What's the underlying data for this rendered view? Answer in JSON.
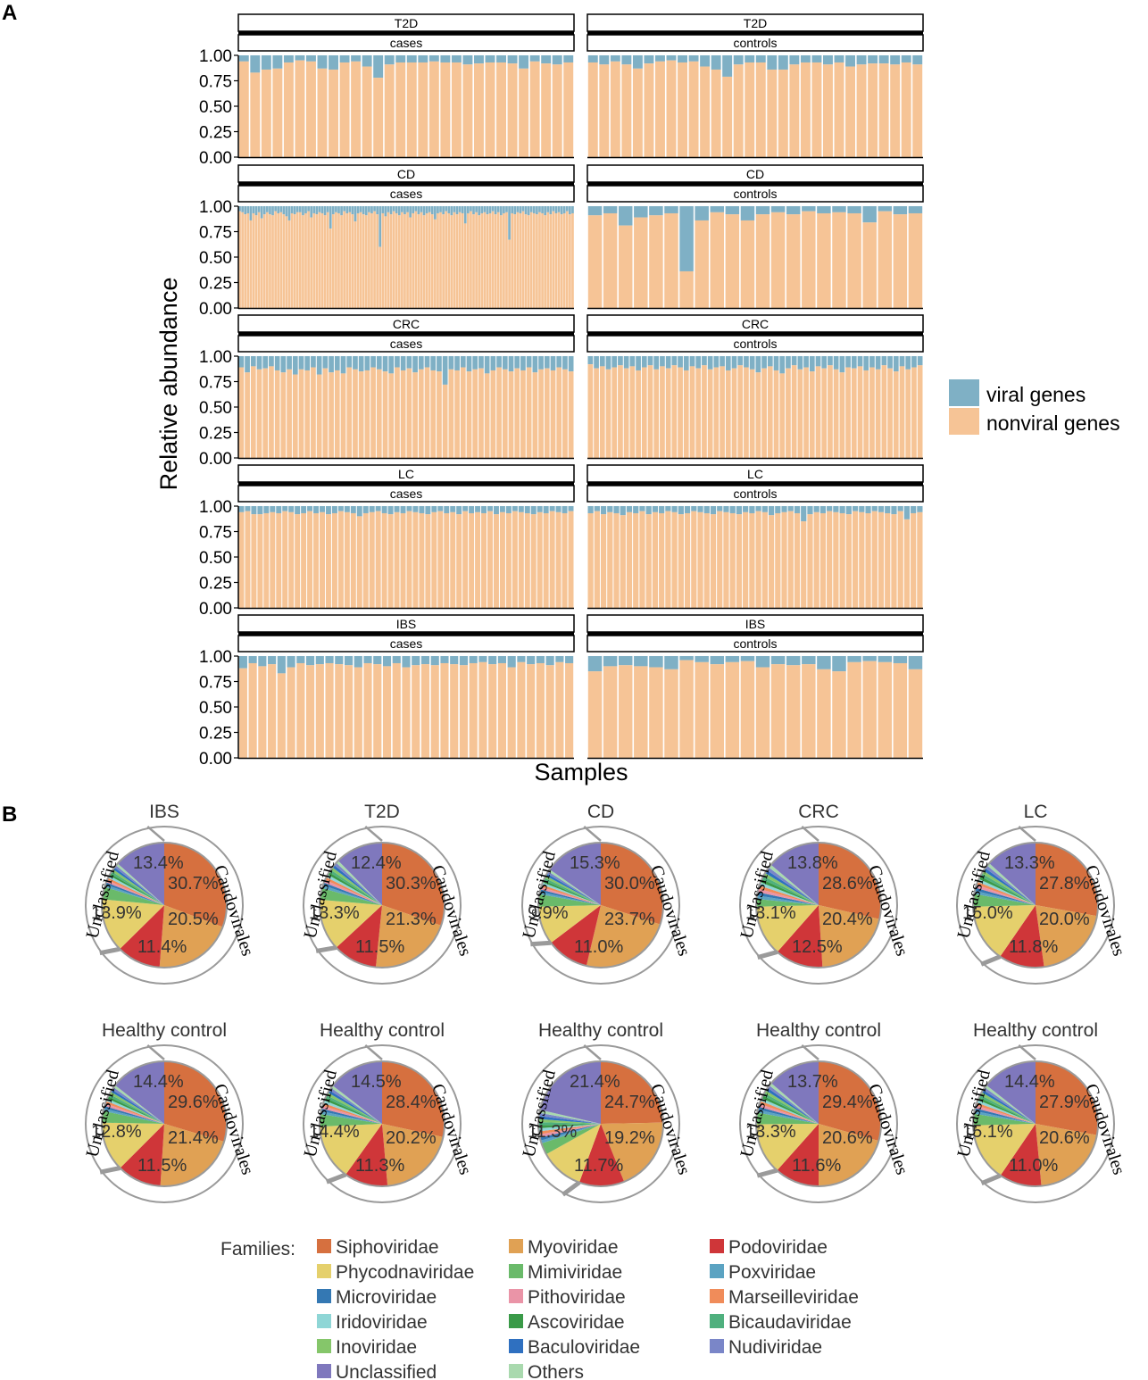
{
  "panel_labels": {
    "a": "A",
    "b": "B"
  },
  "colors": {
    "viral": "#7fb0c5",
    "nonviral": "#f6c496",
    "families": {
      "Siphoviridae": "#d6703f",
      "Myoviridae": "#e0a154",
      "Podoviridae": "#cf3639",
      "Phycodnaviridae": "#e5d06c",
      "Mimiviridae": "#6aba6a",
      "Poxviridae": "#5ba3c2",
      "Microviridae": "#3478b3",
      "Pithoviridae": "#ea94a7",
      "Marseilleviridae": "#f08c5a",
      "Iridoviridae": "#8fd6d6",
      "Ascoviridae": "#3a9a48",
      "Bicaudaviridae": "#4fb07e",
      "Inoviridae": "#85c66a",
      "Baculoviridae": "#2f70c0",
      "Nudiviridae": "#7a86c8",
      "Unclassified": "#7f78bd",
      "Others": "#a9d9ae"
    }
  },
  "chart_data": [
    {
      "type": "bar",
      "stacked": true,
      "panel": "A",
      "title": "",
      "xlabel": "Samples",
      "ylabel": "Relative abundance",
      "ylim": [
        0,
        1
      ],
      "yticks": [
        "0.00",
        "0.25",
        "0.50",
        "0.75",
        "1.00"
      ],
      "legend": {
        "position": "right",
        "entries": [
          "viral genes",
          "nonviral genes"
        ]
      },
      "facets": [
        {
          "disease": "T2D",
          "group": "cases",
          "nonviral": [
            0.94,
            0.83,
            0.86,
            0.87,
            0.93,
            0.95,
            0.94,
            0.87,
            0.86,
            0.93,
            0.94,
            0.89,
            0.78,
            0.91,
            0.93,
            0.93,
            0.93,
            0.94,
            0.93,
            0.93,
            0.91,
            0.92,
            0.93,
            0.93,
            0.92,
            0.87,
            0.94,
            0.92,
            0.91,
            0.93
          ]
        },
        {
          "disease": "T2D",
          "group": "controls",
          "nonviral": [
            0.93,
            0.91,
            0.94,
            0.91,
            0.87,
            0.92,
            0.94,
            0.95,
            0.93,
            0.94,
            0.89,
            0.86,
            0.79,
            0.91,
            0.93,
            0.93,
            0.86,
            0.86,
            0.91,
            0.93,
            0.93,
            0.91,
            0.93,
            0.89,
            0.91,
            0.92,
            0.92,
            0.91,
            0.93,
            0.91
          ]
        },
        {
          "disease": "CD",
          "group": "cases",
          "nonviral": [
            0.95,
            0.94,
            0.92,
            0.93,
            0.86,
            0.93,
            0.91,
            0.94,
            0.88,
            0.92,
            0.94,
            0.92,
            0.91,
            0.95,
            0.93,
            0.94,
            0.92,
            0.9,
            0.86,
            0.93,
            0.92,
            0.94,
            0.94,
            0.91,
            0.93,
            0.95,
            0.89,
            0.93,
            0.92,
            0.94,
            0.93,
            0.91,
            0.94,
            0.78,
            0.92,
            0.94,
            0.93,
            0.91,
            0.95,
            0.93,
            0.94,
            0.92,
            0.85,
            0.93,
            0.94,
            0.92,
            0.91,
            0.94,
            0.93,
            0.95,
            0.92,
            0.6,
            0.93,
            0.9,
            0.94,
            0.92,
            0.95,
            0.93,
            0.91,
            0.94,
            0.92,
            0.94,
            0.89,
            0.93,
            0.95,
            0.92,
            0.94,
            0.91,
            0.93,
            0.94,
            0.92,
            0.87,
            0.93,
            0.94,
            0.92,
            0.95,
            0.93,
            0.91,
            0.94,
            0.92,
            0.94,
            0.93,
            0.83,
            0.93,
            0.95,
            0.92,
            0.94,
            0.91,
            0.93,
            0.94,
            0.92,
            0.93,
            0.95,
            0.92,
            0.94,
            0.91,
            0.93,
            0.94,
            0.67,
            0.93,
            0.92,
            0.94,
            0.93,
            0.95,
            0.92,
            0.91,
            0.94,
            0.93,
            0.92,
            0.94,
            0.93,
            0.91,
            0.94,
            0.92,
            0.95,
            0.93,
            0.94,
            0.92,
            0.93,
            0.95,
            0.92,
            0.93
          ]
        },
        {
          "disease": "CD",
          "group": "controls",
          "nonviral": [
            0.91,
            0.93,
            0.81,
            0.89,
            0.91,
            0.93,
            0.36,
            0.86,
            0.94,
            0.92,
            0.86,
            0.92,
            0.94,
            0.92,
            0.95,
            0.93,
            0.94,
            0.93,
            0.84,
            0.95,
            0.92,
            0.93
          ]
        },
        {
          "disease": "CRC",
          "group": "cases",
          "nonviral": [
            0.89,
            0.84,
            0.9,
            0.87,
            0.88,
            0.9,
            0.86,
            0.84,
            0.87,
            0.82,
            0.87,
            0.86,
            0.89,
            0.82,
            0.88,
            0.84,
            0.86,
            0.83,
            0.89,
            0.87,
            0.85,
            0.86,
            0.89,
            0.87,
            0.85,
            0.83,
            0.89,
            0.86,
            0.88,
            0.84,
            0.87,
            0.89,
            0.86,
            0.85,
            0.72,
            0.87,
            0.86,
            0.89,
            0.85,
            0.87,
            0.88,
            0.83,
            0.86,
            0.89,
            0.87,
            0.85,
            0.88,
            0.86,
            0.89,
            0.84,
            0.87,
            0.88,
            0.86,
            0.89,
            0.87,
            0.85
          ]
        },
        {
          "disease": "CRC",
          "group": "controls",
          "nonviral": [
            0.92,
            0.88,
            0.9,
            0.87,
            0.89,
            0.91,
            0.88,
            0.9,
            0.86,
            0.89,
            0.91,
            0.87,
            0.9,
            0.88,
            0.91,
            0.89,
            0.86,
            0.9,
            0.88,
            0.91,
            0.87,
            0.89,
            0.9,
            0.86,
            0.88,
            0.91,
            0.89,
            0.87,
            0.84,
            0.88,
            0.9,
            0.86,
            0.83,
            0.88,
            0.91,
            0.87,
            0.89,
            0.85,
            0.9,
            0.88,
            0.91,
            0.87,
            0.84,
            0.89,
            0.88,
            0.9,
            0.86,
            0.89,
            0.87,
            0.91,
            0.88,
            0.85,
            0.9,
            0.87,
            0.89,
            0.91
          ]
        },
        {
          "disease": "LC",
          "group": "cases",
          "nonviral": [
            0.94,
            0.95,
            0.92,
            0.92,
            0.93,
            0.94,
            0.93,
            0.95,
            0.94,
            0.92,
            0.93,
            0.95,
            0.93,
            0.94,
            0.92,
            0.93,
            0.95,
            0.94,
            0.93,
            0.9,
            0.93,
            0.94,
            0.95,
            0.93,
            0.92,
            0.94,
            0.93,
            0.95,
            0.94,
            0.93,
            0.92,
            0.94,
            0.95,
            0.93,
            0.94,
            0.92,
            0.95,
            0.93,
            0.94,
            0.93,
            0.95,
            0.92,
            0.94,
            0.93,
            0.95,
            0.94,
            0.93,
            0.92,
            0.94,
            0.93,
            0.95,
            0.94,
            0.93,
            0.95
          ]
        },
        {
          "disease": "LC",
          "group": "controls",
          "nonviral": [
            0.93,
            0.95,
            0.92,
            0.94,
            0.93,
            0.91,
            0.94,
            0.93,
            0.95,
            0.92,
            0.94,
            0.93,
            0.95,
            0.94,
            0.92,
            0.93,
            0.95,
            0.94,
            0.93,
            0.92,
            0.95,
            0.94,
            0.93,
            0.92,
            0.94,
            0.93,
            0.95,
            0.94,
            0.91,
            0.93,
            0.94,
            0.95,
            0.93,
            0.85,
            0.92,
            0.94,
            0.93,
            0.95,
            0.94,
            0.93,
            0.92,
            0.95,
            0.94,
            0.93,
            0.95,
            0.94,
            0.93,
            0.92,
            0.95,
            0.87,
            0.93,
            0.94
          ]
        },
        {
          "disease": "IBS",
          "group": "cases",
          "nonviral": [
            0.88,
            0.93,
            0.9,
            0.92,
            0.83,
            0.89,
            0.93,
            0.91,
            0.92,
            0.93,
            0.92,
            0.91,
            0.89,
            0.93,
            0.92,
            0.9,
            0.93,
            0.89,
            0.91,
            0.92,
            0.91,
            0.93,
            0.92,
            0.91,
            0.93,
            0.94,
            0.92,
            0.93,
            0.89,
            0.94,
            0.92,
            0.93,
            0.91,
            0.94,
            0.93
          ]
        },
        {
          "disease": "IBS",
          "group": "controls",
          "nonviral": [
            0.85,
            0.9,
            0.91,
            0.9,
            0.89,
            0.87,
            0.96,
            0.94,
            0.92,
            0.94,
            0.95,
            0.89,
            0.92,
            0.91,
            0.92,
            0.87,
            0.85,
            0.94,
            0.95,
            0.94,
            0.93,
            0.87
          ]
        }
      ]
    },
    {
      "type": "pie",
      "panel": "B",
      "outer_ring_labels": {
        "classified": "Caudovirales",
        "unclassified": "Unclassified"
      },
      "legend_title": "Families:",
      "legend_entries": [
        "Siphoviridae",
        "Myoviridae",
        "Podoviridae",
        "Phycodnaviridae",
        "Mimiviridae",
        "Poxviridae",
        "Microviridae",
        "Pithoviridae",
        "Marseilleviridae",
        "Iridoviridae",
        "Ascoviridae",
        "Bicaudaviridae",
        "Inoviridae",
        "Baculoviridae",
        "Nudiviridae",
        "Unclassified",
        "Others"
      ],
      "small_families": [
        "Poxviridae",
        "Microviridae",
        "Pithoviridae",
        "Marseilleviridae",
        "Iridoviridae",
        "Ascoviridae",
        "Bicaudaviridae",
        "Inoviridae",
        "Baculoviridae",
        "Nudiviridae",
        "Others"
      ],
      "pies": [
        {
          "title": "IBS",
          "Siphoviridae": 30.7,
          "Myoviridae": 20.5,
          "Podoviridae": 11.4,
          "Phycodnaviridae": 13.9,
          "Mimiviridae": 3.2,
          "Unclassified": 13.4,
          "labels": [
            "30.7%",
            "20.5%",
            "11.4%",
            "13.9%",
            "13.4%"
          ]
        },
        {
          "title": "T2D",
          "Siphoviridae": 30.3,
          "Myoviridae": 21.3,
          "Podoviridae": 11.5,
          "Phycodnaviridae": 13.3,
          "Mimiviridae": 3.0,
          "Unclassified": 12.4,
          "labels": [
            "30.3%",
            "21.3%",
            "11.5%",
            "13.3%",
            "12.4%"
          ]
        },
        {
          "title": "CD",
          "Siphoviridae": 30.0,
          "Myoviridae": 23.7,
          "Podoviridae": 11.0,
          "Phycodnaviridae": 9.9,
          "Mimiviridae": 3.2,
          "Unclassified": 15.3,
          "labels": [
            "30.0%",
            "23.7%",
            "11.0%",
            "9.9%",
            "15.3%"
          ]
        },
        {
          "title": "CRC",
          "Siphoviridae": 28.6,
          "Myoviridae": 20.4,
          "Podoviridae": 12.5,
          "Phycodnaviridae": 13.1,
          "Mimiviridae": 2.0,
          "Unclassified": 13.8,
          "labels": [
            "28.6%",
            "20.4%",
            "12.5%",
            "13.1%",
            "13.8%"
          ]
        },
        {
          "title": "LC",
          "Siphoviridae": 27.8,
          "Myoviridae": 20.0,
          "Podoviridae": 11.8,
          "Phycodnaviridae": 15.0,
          "Mimiviridae": 3.3,
          "Unclassified": 13.3,
          "labels": [
            "27.8%",
            "20.0%",
            "11.8%",
            "15.0%",
            "13.3%"
          ]
        },
        {
          "title": "Healthy control",
          "Siphoviridae": 29.6,
          "Myoviridae": 21.4,
          "Podoviridae": 11.5,
          "Phycodnaviridae": 12.8,
          "Mimiviridae": 3.0,
          "Unclassified": 14.4,
          "labels": [
            "29.6%",
            "21.4%",
            "11.5%",
            "12.8%",
            "14.4%"
          ]
        },
        {
          "title": "Healthy control",
          "Siphoviridae": 28.4,
          "Myoviridae": 20.2,
          "Podoviridae": 11.3,
          "Phycodnaviridae": 14.4,
          "Mimiviridae": 3.2,
          "Unclassified": 14.5,
          "labels": [
            "28.4%",
            "20.2%",
            "11.3%",
            "14.4%",
            "14.5%"
          ]
        },
        {
          "title": "Healthy control",
          "Siphoviridae": 24.7,
          "Myoviridae": 19.2,
          "Podoviridae": 11.7,
          "Phycodnaviridae": 11.3,
          "Mimiviridae": 3.0,
          "Unclassified": 21.4,
          "labels": [
            "24.7%",
            "19.2%",
            "11.7%",
            "11.3%",
            "21.4%"
          ]
        },
        {
          "title": "Healthy control",
          "Siphoviridae": 29.4,
          "Myoviridae": 20.6,
          "Podoviridae": 11.6,
          "Phycodnaviridae": 13.3,
          "Mimiviridae": 3.0,
          "Unclassified": 13.7,
          "labels": [
            "29.4%",
            "20.6%",
            "11.6%",
            "13.3%",
            "13.7%"
          ]
        },
        {
          "title": "Healthy control",
          "Siphoviridae": 27.9,
          "Myoviridae": 20.6,
          "Podoviridae": 11.0,
          "Phycodnaviridae": 15.1,
          "Mimiviridae": 3.0,
          "Unclassified": 14.4,
          "labels": [
            "27.9%",
            "20.6%",
            "11.0%",
            "15.1%",
            "14.4%"
          ]
        }
      ]
    }
  ]
}
